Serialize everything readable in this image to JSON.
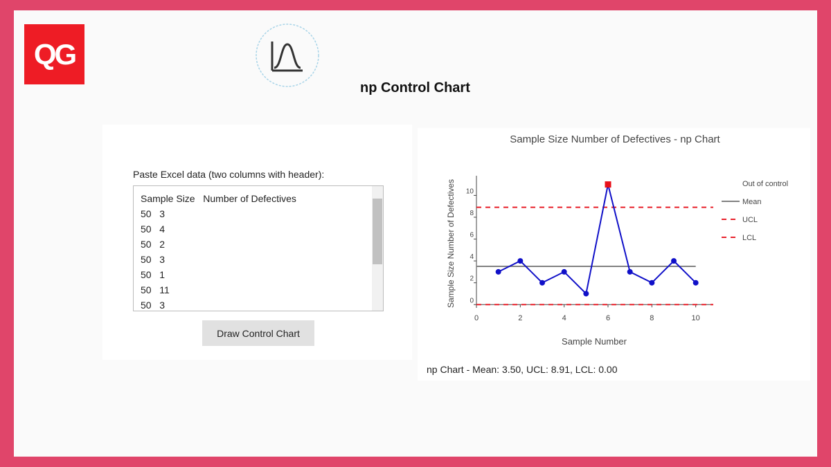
{
  "logo": "QG",
  "title": "np Control Chart",
  "input": {
    "label": "Paste Excel data (two columns with header):",
    "lines": [
      "Sample Size   Number of Defectives",
      "50   3",
      "50   4",
      "50   2",
      "50   3",
      "50   1",
      "50   11",
      "50   3"
    ]
  },
  "button": "Draw Control Chart",
  "summary": "np Chart - Mean: 3.50, UCL: 8.91, LCL: 0.00",
  "chart_data": {
    "type": "line",
    "title": "Sample Size   Number of Defectives - np Chart",
    "x_label": "Sample Number",
    "y_label": "Sample Size   Number of Defectives",
    "x": [
      1,
      2,
      3,
      4,
      5,
      6,
      7,
      8,
      9,
      10
    ],
    "series": [
      {
        "color": "#1010c8",
        "values": [
          3,
          4,
          2,
          3,
          1,
          11,
          3,
          2,
          4,
          2
        ]
      },
      {
        "name": "Out of control",
        "color": "#e8101a",
        "values": [
          null,
          null,
          null,
          null,
          null,
          11,
          null,
          null,
          null,
          null
        ]
      }
    ],
    "limits": [
      {
        "name": "Mean",
        "value": 3.5,
        "color": "#808080",
        "dashed": false
      },
      {
        "name": "UCL",
        "value": 8.91,
        "color": "#e8202a",
        "dashed": true
      },
      {
        "name": "LCL",
        "value": 0,
        "color": "#e8202a",
        "dashed": true
      }
    ],
    "xlim": [
      0,
      10.8
    ],
    "ylim": [
      -0.3,
      11.8
    ],
    "xticks": [
      0,
      2,
      4,
      6,
      8,
      10
    ],
    "yticks": [
      0,
      2,
      4,
      6,
      8,
      10
    ],
    "grid": false,
    "legend": "right"
  }
}
